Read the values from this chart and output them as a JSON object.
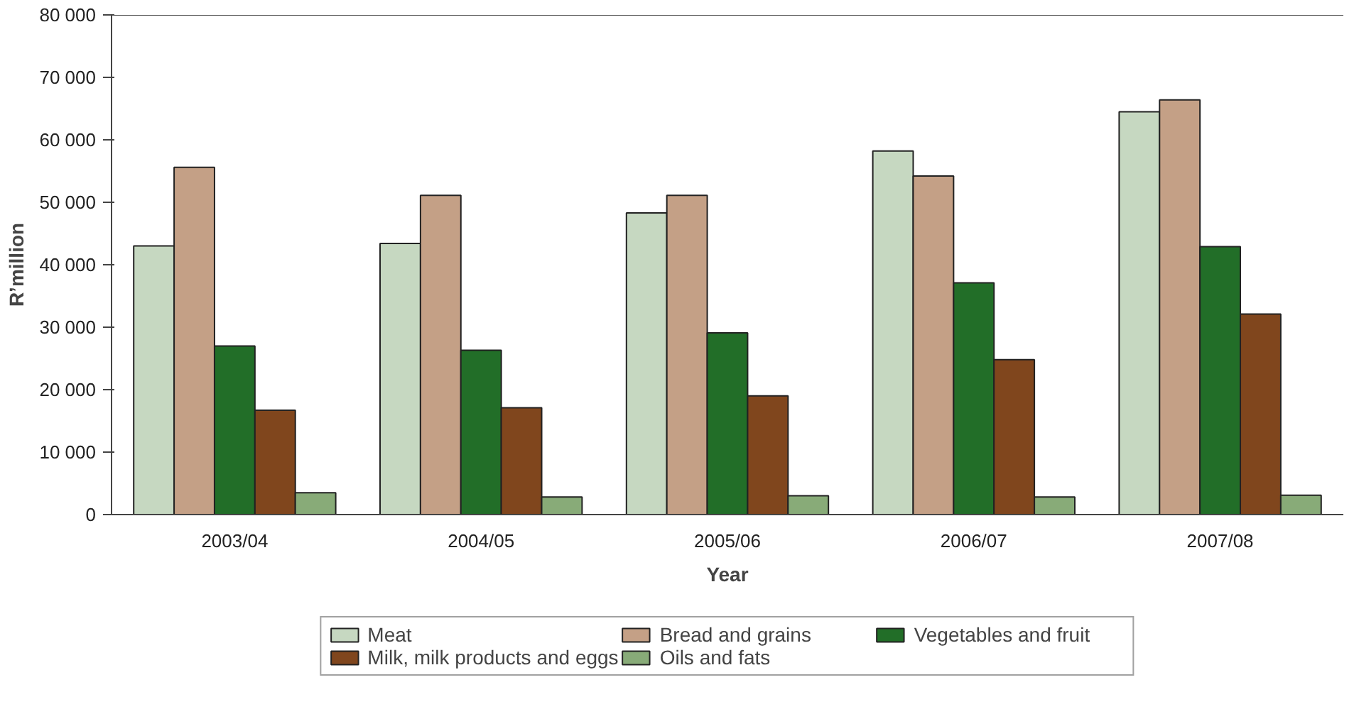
{
  "chart_data": {
    "type": "bar",
    "xlabel": "Year",
    "ylabel": "R’million",
    "categories": [
      "2003/04",
      "2004/05",
      "2005/06",
      "2006/07",
      "2007/08"
    ],
    "series": [
      {
        "name": "Meat",
        "color": "#c6d8c1",
        "values": [
          43000,
          43400,
          48300,
          58200,
          64500
        ]
      },
      {
        "name": "Bread and grains",
        "color": "#c4a086",
        "values": [
          55600,
          51100,
          51100,
          54200,
          66400
        ]
      },
      {
        "name": "Vegetables and fruit",
        "color": "#226e28",
        "values": [
          27000,
          26300,
          29100,
          37100,
          42900
        ]
      },
      {
        "name": "Milk, milk products and eggs",
        "color": "#80461d",
        "values": [
          16700,
          17100,
          19000,
          24800,
          32100
        ]
      },
      {
        "name": "Oils and fats",
        "color": "#88ab78",
        "values": [
          3500,
          2800,
          3000,
          2800,
          3100
        ]
      }
    ],
    "ylim": [
      0,
      80000
    ],
    "yticks": [
      {
        "value": 0,
        "label": "0"
      },
      {
        "value": 10000,
        "label": "10 000"
      },
      {
        "value": 20000,
        "label": "20 000"
      },
      {
        "value": 30000,
        "label": "30 000"
      },
      {
        "value": 40000,
        "label": "40 000"
      },
      {
        "value": 50000,
        "label": "50 000"
      },
      {
        "value": 60000,
        "label": "60 000"
      },
      {
        "value": 70000,
        "label": "70 000"
      },
      {
        "value": 80000,
        "label": "80 000"
      }
    ],
    "grid": false,
    "legend": "bottom"
  }
}
